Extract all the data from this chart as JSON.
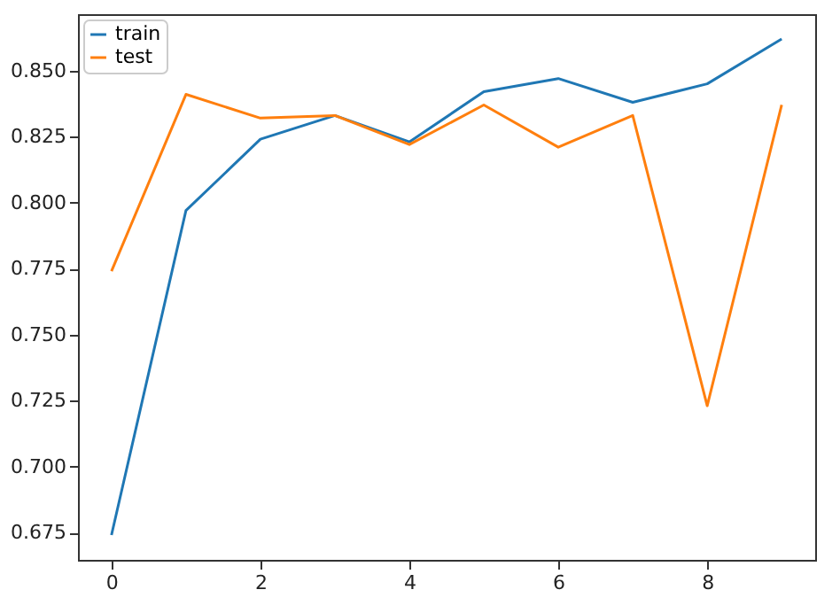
{
  "chart_data": {
    "type": "line",
    "x": [
      0,
      1,
      2,
      3,
      4,
      5,
      6,
      7,
      8,
      9
    ],
    "series": [
      {
        "name": "train",
        "color": "#1f77b4",
        "values": [
          0.674,
          0.797,
          0.824,
          0.833,
          0.823,
          0.842,
          0.847,
          0.838,
          0.845,
          0.862
        ]
      },
      {
        "name": "test",
        "color": "#ff7f0e",
        "values": [
          0.774,
          0.841,
          0.832,
          0.833,
          0.822,
          0.837,
          0.821,
          0.833,
          0.723,
          0.837
        ]
      }
    ],
    "xlim": [
      -0.45,
      9.45
    ],
    "xticks": [
      0,
      2,
      4,
      6,
      8
    ],
    "ylim": [
      0.6646,
      0.8714
    ],
    "yticks": [
      {
        "value": 0.675,
        "label": "0.675"
      },
      {
        "value": 0.7,
        "label": "0.700"
      },
      {
        "value": 0.725,
        "label": "0.725"
      },
      {
        "value": 0.75,
        "label": "0.750"
      },
      {
        "value": 0.775,
        "label": "0.775"
      },
      {
        "value": 0.8,
        "label": "0.800"
      },
      {
        "value": 0.825,
        "label": "0.825"
      },
      {
        "value": 0.85,
        "label": "0.850"
      }
    ],
    "grid": false,
    "legend": "top left"
  }
}
